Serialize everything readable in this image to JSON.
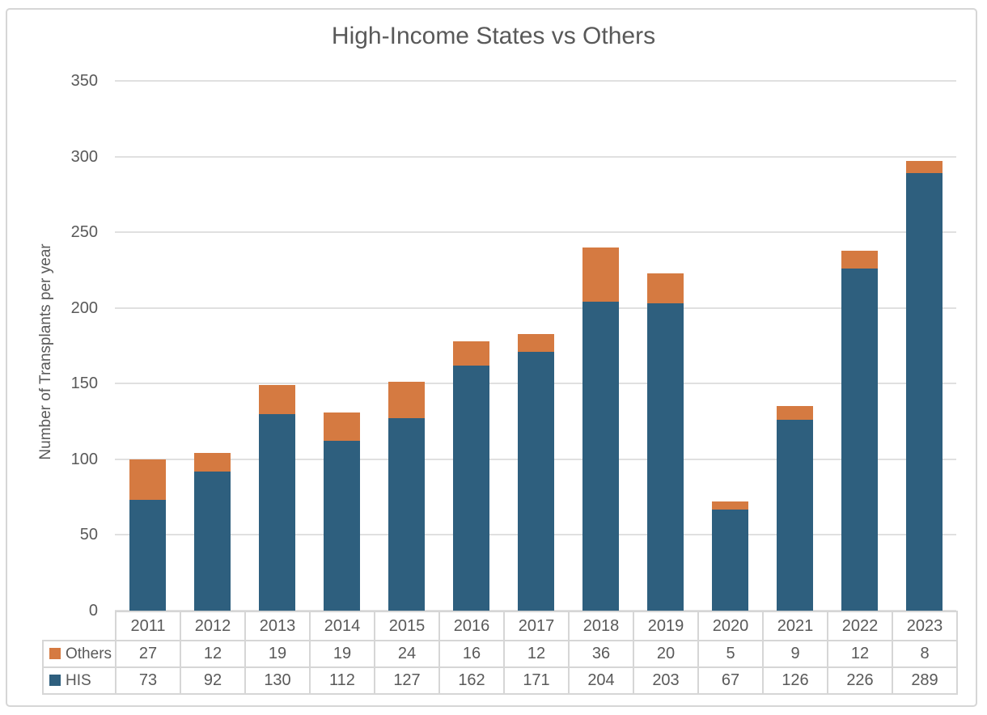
{
  "title": "High-Income States vs Others",
  "y_axis": {
    "label": "Number of Transplants per year"
  },
  "colors": {
    "others": "#D57A41",
    "his": "#2E5F7E",
    "gridline": "#E0E0E0",
    "text": "#595959",
    "table_border": "#D6D6D6"
  },
  "chart_data": {
    "type": "bar",
    "stacked": true,
    "title": "High-Income States vs Others",
    "xlabel": "",
    "ylabel": "Number of Transplants per year",
    "categories": [
      "2011",
      "2012",
      "2013",
      "2014",
      "2015",
      "2016",
      "2017",
      "2018",
      "2019",
      "2020",
      "2021",
      "2022",
      "2023"
    ],
    "series": [
      {
        "name": "Others",
        "color": "#D57A41",
        "values": [
          27,
          12,
          19,
          19,
          24,
          16,
          12,
          36,
          20,
          5,
          9,
          12,
          8
        ]
      },
      {
        "name": "HIS",
        "color": "#2E5F7E",
        "values": [
          73,
          92,
          130,
          112,
          127,
          162,
          171,
          204,
          203,
          67,
          126,
          226,
          289
        ]
      }
    ],
    "ylim": [
      0,
      350
    ],
    "yticks": [
      0,
      50,
      100,
      150,
      200,
      250,
      300,
      350
    ],
    "grid": true,
    "legend_position": "bottom-table-left"
  }
}
